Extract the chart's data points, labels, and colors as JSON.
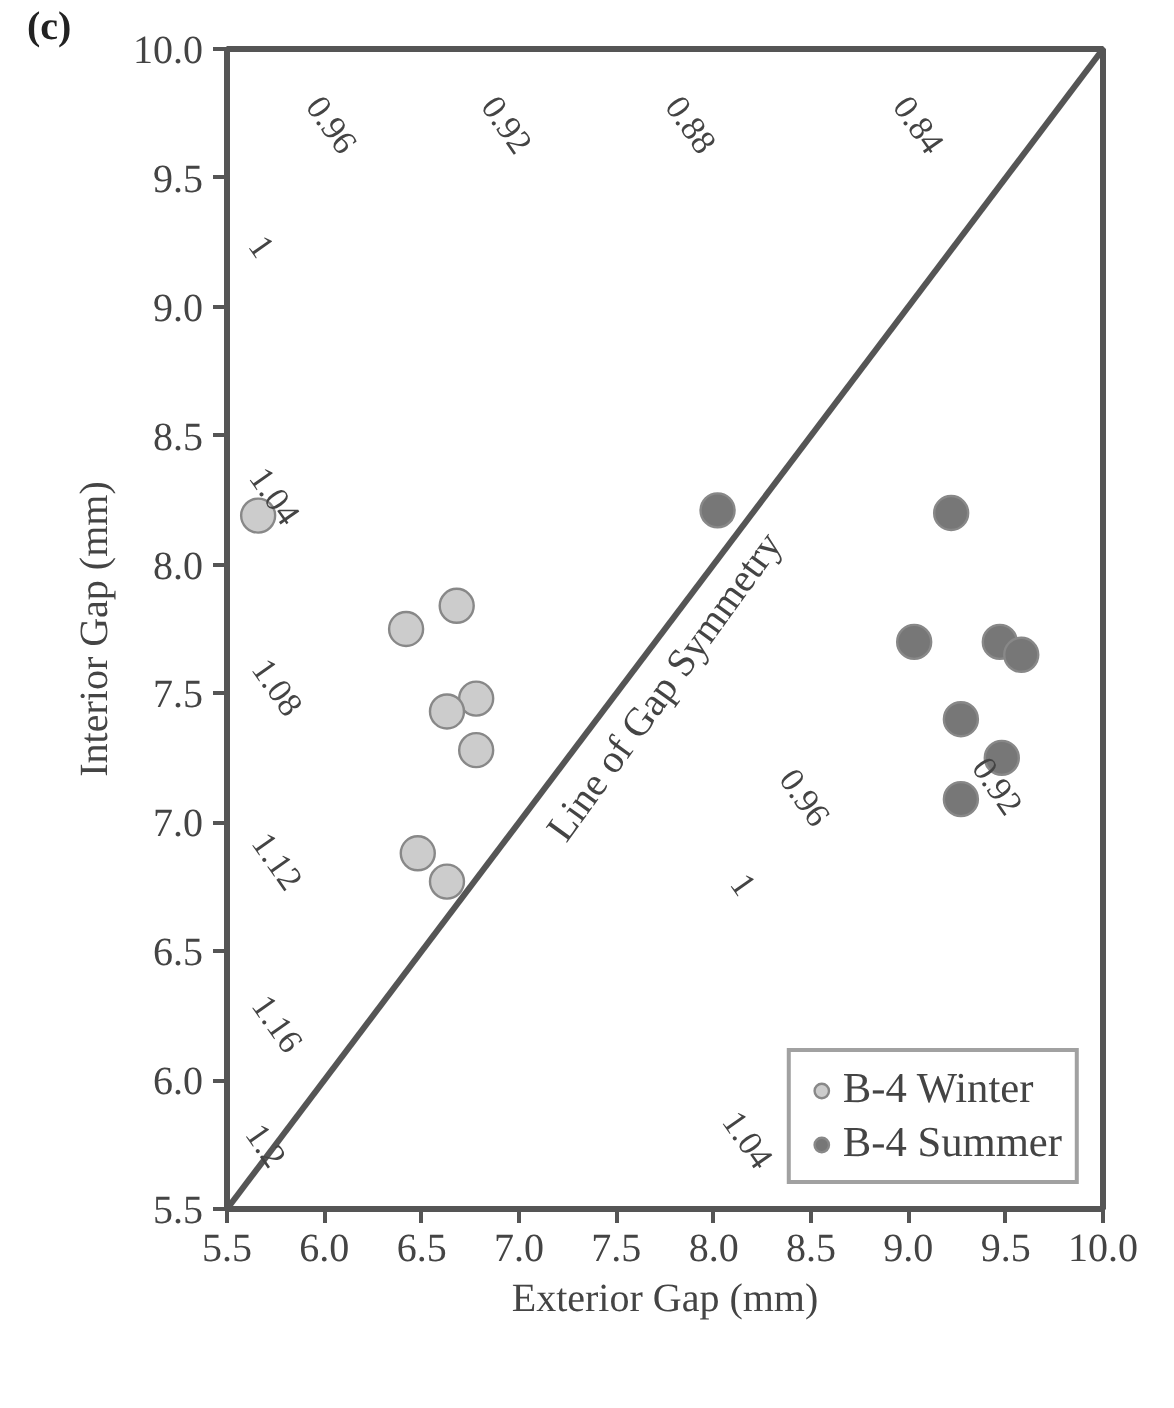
{
  "chart_data": {
    "type": "scatter",
    "title": "(c)",
    "xlabel": "Exterior Gap (mm)",
    "ylabel": "Interior Gap (mm)",
    "xlim": [
      5.5,
      10.0
    ],
    "ylim": [
      5.5,
      10.0
    ],
    "xticks": [
      {
        "value": 5.5,
        "label": "5.5"
      },
      {
        "value": 6.0,
        "label": "6.0"
      },
      {
        "value": 6.5,
        "label": "6.5"
      },
      {
        "value": 7.0,
        "label": "7.0"
      },
      {
        "value": 7.5,
        "label": "7.5"
      },
      {
        "value": 8.0,
        "label": "8.0"
      },
      {
        "value": 8.5,
        "label": "8.5"
      },
      {
        "value": 9.0,
        "label": "9.0"
      },
      {
        "value": 9.5,
        "label": "9.5"
      },
      {
        "value": 10.0,
        "label": "10.0"
      }
    ],
    "yticks": [
      {
        "value": 5.5,
        "label": "5.5"
      },
      {
        "value": 6.0,
        "label": "6.0"
      },
      {
        "value": 6.5,
        "label": "6.5"
      },
      {
        "value": 7.0,
        "label": "7.0"
      },
      {
        "value": 7.5,
        "label": "7.5"
      },
      {
        "value": 8.0,
        "label": "8.0"
      },
      {
        "value": 8.5,
        "label": "8.5"
      },
      {
        "value": 9.0,
        "label": "9.0"
      },
      {
        "value": 9.5,
        "label": "9.5"
      },
      {
        "value": 10.0,
        "label": "10.0"
      }
    ],
    "marker": "circle",
    "grid": false,
    "legend": "bottom right",
    "series": [
      {
        "name": "B-4 Winter",
        "color": "#cccccc",
        "x": [
          5.66,
          6.68,
          6.42,
          6.78,
          6.63,
          6.78,
          6.48,
          6.63
        ],
        "values": [
          8.19,
          7.84,
          7.75,
          7.48,
          7.43,
          7.28,
          6.88,
          6.77
        ]
      },
      {
        "name": "B-4 Summer",
        "color": "#777777",
        "x": [
          8.02,
          9.22,
          9.03,
          9.47,
          9.58,
          9.27,
          9.48,
          9.27
        ],
        "values": [
          8.21,
          8.2,
          7.7,
          7.7,
          7.65,
          7.4,
          7.25,
          7.09
        ]
      },
      {
        "type": "line",
        "marker": "none",
        "color": "#555555",
        "x": [
          5.5,
          10.0
        ],
        "values": [
          5.5,
          10.0
        ]
      }
    ],
    "annotations": [
      "Line of Gap Symmetry",
      "0.96",
      "0.92",
      "0.88",
      "0.84",
      "1",
      "1.04",
      "1.08",
      "1.12",
      "1.16",
      "1.2",
      "0.96",
      "1",
      "0.92",
      "1.04"
    ]
  }
}
